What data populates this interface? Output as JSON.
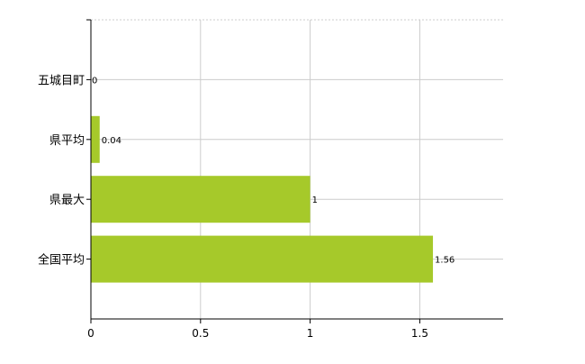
{
  "chart_data": {
    "type": "bar",
    "orientation": "horizontal",
    "categories": [
      "五城目町",
      "県平均",
      "県最大",
      "全国平均"
    ],
    "values": [
      0,
      0.04,
      1,
      1.56
    ],
    "data_labels": [
      "0",
      "0.04",
      "1",
      "1.56"
    ],
    "x_ticks": [
      "0",
      "0.5",
      "1",
      "1.5"
    ],
    "x_tick_values": [
      0,
      0.5,
      1,
      1.5
    ],
    "xlim": [
      0,
      1.88
    ],
    "title": "",
    "xlabel": "",
    "ylabel": "",
    "grid": true,
    "colors": {
      "bar": "#a6c92a",
      "grid": "#cccccc",
      "axis": "#000000",
      "label": "#000000"
    }
  }
}
